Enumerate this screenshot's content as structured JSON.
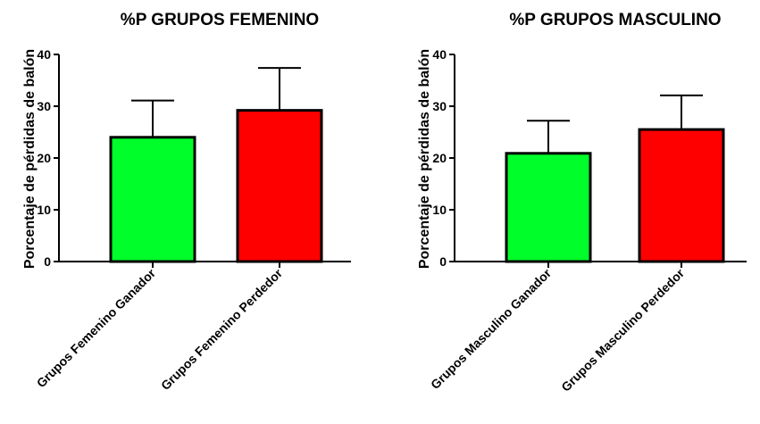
{
  "chart_data": [
    {
      "type": "bar",
      "title": "%P GRUPOS FEMENINO",
      "xlabel": "",
      "ylabel": "Porcentaje de pérdidas de balón",
      "ylim": [
        0,
        40
      ],
      "yticks": [
        "0",
        "10",
        "20",
        "30",
        "40"
      ],
      "categories": [
        "Grupos Femenino Ganador",
        "Grupos Femenino Perdedor"
      ],
      "values": [
        24,
        29.2
      ],
      "error": [
        7.1,
        8.2
      ],
      "colors": [
        "#00ff2a",
        "#ff0000"
      ],
      "grid": false
    },
    {
      "type": "bar",
      "title": "%P GRUPOS MASCULINO",
      "xlabel": "",
      "ylabel": "Porcentaje de pérdidas de balón",
      "ylim": [
        0,
        40
      ],
      "yticks": [
        "0",
        "10",
        "20",
        "30",
        "40"
      ],
      "categories": [
        "Grupos Masculino Ganador",
        "Grupos Masculino Perdedor"
      ],
      "values": [
        20.9,
        25.5
      ],
      "error": [
        6.3,
        6.6
      ],
      "colors": [
        "#00ff2a",
        "#ff0000"
      ],
      "grid": false
    }
  ]
}
